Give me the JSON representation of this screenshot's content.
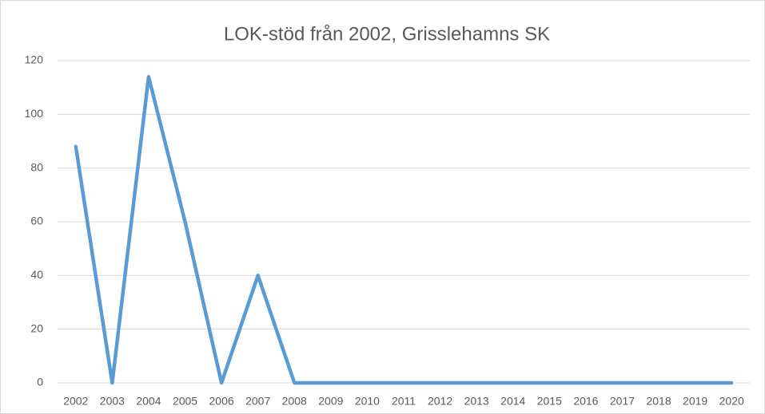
{
  "chart_data": {
    "type": "line",
    "title": "LOK-stöd från 2002, Grisslehamns SK",
    "categories": [
      "2002",
      "2003",
      "2004",
      "2005",
      "2006",
      "2007",
      "2008",
      "2009",
      "2010",
      "2011",
      "2012",
      "2013",
      "2014",
      "2015",
      "2016",
      "2017",
      "2018",
      "2019",
      "2020"
    ],
    "values": [
      88,
      0,
      114,
      60,
      0,
      40,
      0,
      0,
      0,
      0,
      0,
      0,
      0,
      0,
      0,
      0,
      0,
      0,
      0
    ],
    "color": "#5b9bd5",
    "ylim": [
      0,
      120
    ],
    "yticks": [
      0,
      20,
      40,
      60,
      80,
      100,
      120
    ],
    "grid": true
  }
}
